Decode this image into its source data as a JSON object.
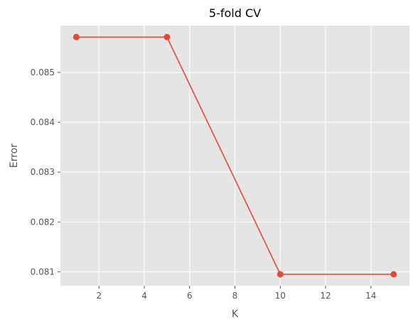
{
  "chart_data": {
    "type": "line",
    "title": "5-fold CV",
    "xlabel": "K",
    "ylabel": "Error",
    "x": [
      1,
      5,
      10,
      15
    ],
    "y": [
      0.08571,
      0.08571,
      0.08095,
      0.08095
    ],
    "xlim": [
      0.3,
      15.7
    ],
    "ylim": [
      0.08072,
      0.08594
    ],
    "xticks": [
      2,
      4,
      6,
      8,
      10,
      12,
      14
    ],
    "xtick_labels": [
      "2",
      "4",
      "6",
      "8",
      "10",
      "12",
      "14"
    ],
    "yticks": [
      0.081,
      0.082,
      0.083,
      0.084,
      0.085
    ],
    "ytick_labels": [
      "0.081",
      "0.082",
      "0.083",
      "0.084",
      "0.085"
    ],
    "grid": true,
    "legend": "none",
    "colors": {
      "line": "#E24A33",
      "plot_background": "#E5E5E5",
      "grid": "#FFFFFF"
    },
    "marker": "circle"
  }
}
